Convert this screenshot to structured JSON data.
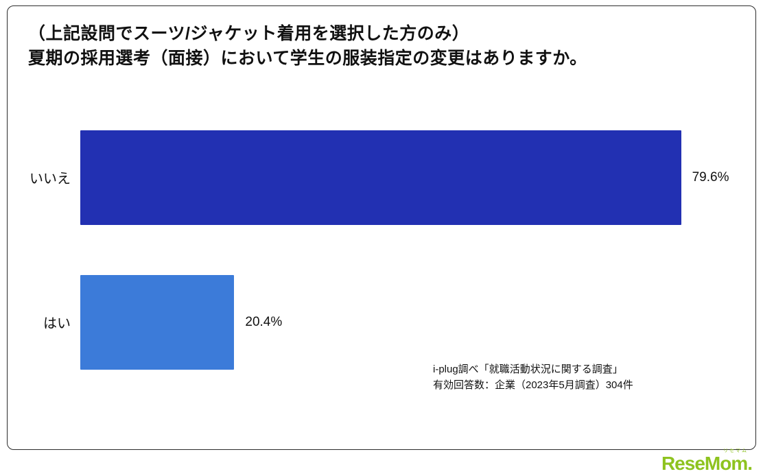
{
  "header": {
    "title_line1": "（上記設問でスーツ/ジャケット着用を選択した方のみ）",
    "title_line2": "夏期の採用選考（面接）において学生の服装指定の変更はありますか。"
  },
  "chart_data": {
    "type": "bar",
    "orientation": "horizontal",
    "categories": [
      "いいえ",
      "はい"
    ],
    "values": [
      79.6,
      20.4
    ],
    "value_labels": [
      "79.6%",
      "20.4%"
    ],
    "colors": [
      "#2230b2",
      "#3c7bd9"
    ],
    "title": "（上記設問でスーツ/ジャケット着用を選択した方のみ）夏期の採用選考（面接）において学生の服装指定の変更はありますか。",
    "xlabel": "",
    "ylabel": "",
    "xlim": [
      0,
      80
    ],
    "grid": false,
    "legend": false
  },
  "source": {
    "line1": "i-plug調べ「就職活動状況に関する調査」",
    "line2": "有効回答数：企業（2023年5月調査）304件"
  },
  "logo": {
    "subtext": "リセマム",
    "text": "ReseMom."
  }
}
